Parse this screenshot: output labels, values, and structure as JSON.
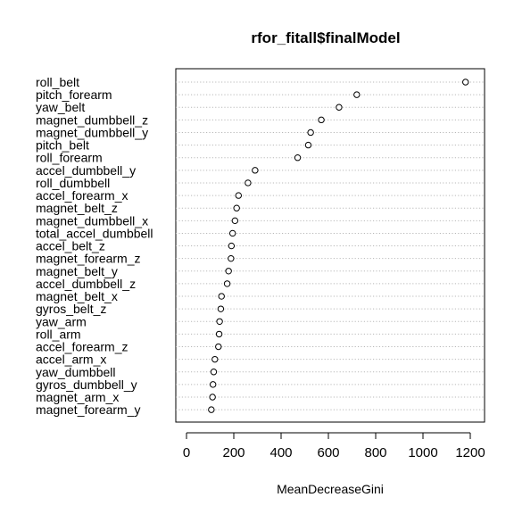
{
  "chart_data": {
    "type": "scatter",
    "title": "rfor_fitall$finalModel",
    "xlabel": "MeanDecreaseGini",
    "ylabel": "",
    "xlim": [
      0,
      1200
    ],
    "xticks": [
      0,
      200,
      400,
      600,
      800,
      1000,
      1200
    ],
    "grid": "dotted horizontal lines per variable",
    "point_style": "open circle",
    "categories": [
      "roll_belt",
      "pitch_forearm",
      "yaw_belt",
      "magnet_dumbbell_z",
      "magnet_dumbbell_y",
      "pitch_belt",
      "roll_forearm",
      "accel_dumbbell_y",
      "roll_dumbbell",
      "accel_forearm_x",
      "magnet_belt_z",
      "magnet_dumbbell_x",
      "total_accel_dumbbell",
      "accel_belt_z",
      "magnet_forearm_z",
      "magnet_belt_y",
      "accel_dumbbell_z",
      "magnet_belt_x",
      "gyros_belt_z",
      "yaw_arm",
      "roll_arm",
      "accel_forearm_z",
      "accel_arm_x",
      "yaw_dumbbell",
      "gyros_dumbbell_y",
      "magnet_arm_x",
      "magnet_forearm_y"
    ],
    "values": [
      1180,
      720,
      645,
      570,
      525,
      515,
      470,
      290,
      260,
      220,
      212,
      205,
      195,
      190,
      188,
      178,
      172,
      148,
      145,
      140,
      138,
      135,
      120,
      115,
      112,
      110,
      105
    ]
  }
}
